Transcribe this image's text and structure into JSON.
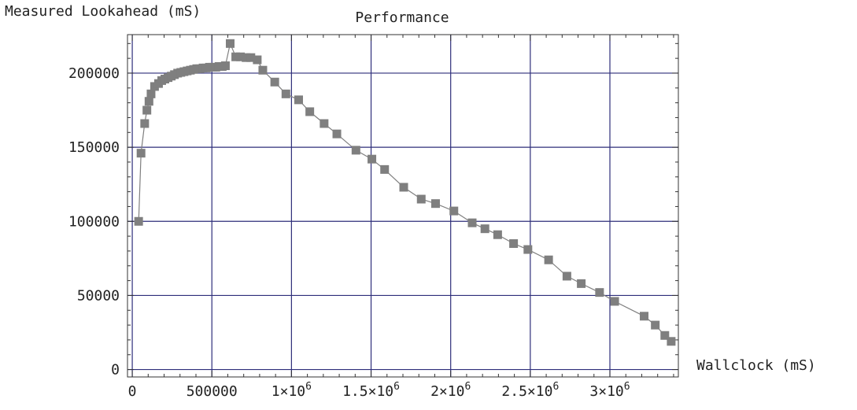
{
  "chart_data": {
    "type": "line",
    "title": "Performance",
    "ylabel": "Measured Lookahead (mS)",
    "xlabel": "Wallclock (mS)",
    "xlim": [
      -30000,
      3430000
    ],
    "ylim": [
      -5000,
      226000
    ],
    "grid": true,
    "x_ticks": [
      {
        "value": 0,
        "label": "0",
        "sup": ""
      },
      {
        "value": 500000,
        "label": "500000",
        "sup": ""
      },
      {
        "value": 1000000,
        "label": "1×10",
        "sup": "6"
      },
      {
        "value": 1500000,
        "label": "1.5×10",
        "sup": "6"
      },
      {
        "value": 2000000,
        "label": "2×10",
        "sup": "6"
      },
      {
        "value": 2500000,
        "label": "2.5×10",
        "sup": "6"
      },
      {
        "value": 3000000,
        "label": "3×10",
        "sup": "6"
      }
    ],
    "y_ticks": [
      {
        "value": 0,
        "label": "0"
      },
      {
        "value": 50000,
        "label": "50000"
      },
      {
        "value": 100000,
        "label": "100000"
      },
      {
        "value": 150000,
        "label": "150000"
      },
      {
        "value": 200000,
        "label": "200000"
      }
    ],
    "series": [
      {
        "marker": "square",
        "x": [
          40000,
          55000,
          78000,
          92000,
          105000,
          118000,
          140000,
          165000,
          185000,
          205000,
          225000,
          245000,
          265000,
          285000,
          305000,
          325000,
          345000,
          365000,
          385000,
          405000,
          425000,
          445000,
          465000,
          485000,
          505000,
          525000,
          545000,
          565000,
          585000,
          615000,
          650000,
          680000,
          715000,
          745000,
          785000,
          820000,
          895000,
          965000,
          1045000,
          1115000,
          1205000,
          1285000,
          1405000,
          1505000,
          1585000,
          1705000,
          1815000,
          1905000,
          2020000,
          2135000,
          2215000,
          2295000,
          2395000,
          2485000,
          2615000,
          2730000,
          2820000,
          2935000,
          3030000,
          3215000,
          3285000,
          3345000,
          3385000
        ],
        "y": [
          100000,
          146000,
          166000,
          175000,
          181000,
          186000,
          191000,
          193000,
          195000,
          196000,
          197000,
          198000,
          199000,
          200000,
          200500,
          201000,
          201500,
          202000,
          202500,
          203000,
          203000,
          203500,
          203500,
          204000,
          204000,
          204000,
          204500,
          204500,
          205000,
          220000,
          211000,
          211000,
          210500,
          210500,
          209000,
          202000,
          194000,
          186000,
          182000,
          174000,
          166000,
          159000,
          148000,
          142000,
          135000,
          123000,
          115000,
          112000,
          107000,
          99000,
          95000,
          91000,
          85000,
          81000,
          74000,
          63000,
          58000,
          52000,
          46000,
          36000,
          30000,
          23000,
          19000
        ]
      }
    ],
    "colors": {
      "marker": "#7f7f7f",
      "line": "#7f7f7f",
      "grid": "#2e2e7a",
      "frame": "#333333",
      "text": "#222222"
    }
  }
}
